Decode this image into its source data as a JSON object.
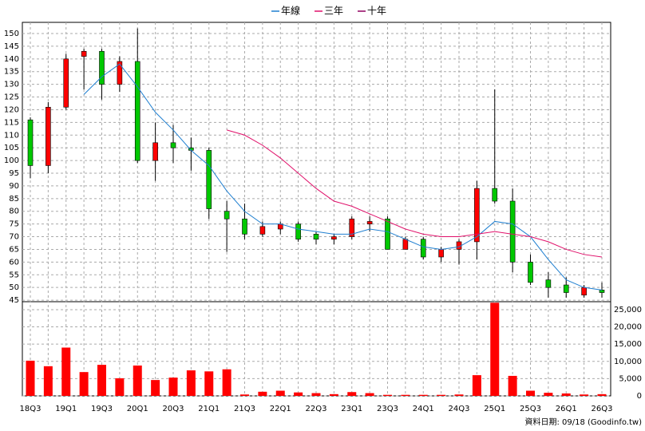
{
  "chart_data": {
    "type": "candlestick",
    "categories": [
      "18Q3",
      null,
      "19Q1",
      null,
      "19Q3",
      null,
      "20Q1",
      null,
      "20Q3",
      null,
      "21Q1",
      null,
      "21Q3",
      null,
      "22Q1",
      null,
      "22Q3",
      null,
      "23Q1",
      null,
      "23Q3",
      null,
      "24Q1",
      null,
      "24Q3",
      null,
      "25Q1",
      null,
      "25Q3",
      null,
      "26Q1",
      null,
      "26Q3"
    ],
    "open": [
      116,
      98,
      121,
      141,
      143,
      130,
      139,
      100,
      107,
      105,
      104,
      80,
      77,
      71,
      73,
      75,
      71,
      69,
      70,
      75,
      77,
      65,
      69,
      62,
      65,
      68,
      89,
      84,
      60,
      53,
      51,
      47,
      49
    ],
    "high": [
      117,
      123,
      142,
      144,
      144,
      141,
      152,
      115,
      114,
      109,
      105,
      84,
      83,
      76,
      76,
      76,
      72,
      71,
      78,
      78,
      78,
      70,
      70,
      66,
      69,
      92,
      128,
      89,
      63,
      56,
      54,
      51,
      52
    ],
    "low": [
      93,
      95,
      120,
      128,
      124,
      127,
      99,
      92,
      99,
      96,
      77,
      64,
      69,
      70,
      71,
      68,
      67,
      67,
      69,
      72,
      65,
      65,
      61,
      60,
      59,
      61,
      83,
      56,
      51,
      46,
      46,
      46,
      46
    ],
    "close": [
      98,
      121,
      140,
      143,
      130,
      139,
      100,
      107,
      105,
      104,
      81,
      77,
      71,
      74,
      75,
      69,
      69,
      70,
      77,
      76,
      65,
      69,
      62,
      65,
      68,
      89,
      84,
      60,
      52,
      50,
      48,
      50,
      48
    ],
    "up_color": "#ff0000",
    "down_color": "#00c800",
    "volume": [
      10200,
      8600,
      14000,
      6900,
      9000,
      5100,
      8800,
      4600,
      5300,
      7400,
      7100,
      7700,
      400,
      1200,
      1500,
      1000,
      800,
      500,
      1100,
      800,
      300,
      300,
      300,
      300,
      400,
      6000,
      27000,
      5800,
      1500,
      900,
      700,
      400,
      500
    ],
    "volume_color": "#ff0000",
    "series": [
      {
        "name": "年線",
        "color": "#1f7fd0",
        "values": [
          null,
          null,
          null,
          126,
          133,
          138,
          129,
          119,
          112,
          104,
          98,
          88,
          80,
          75,
          75,
          73,
          72,
          71,
          71,
          73,
          72,
          69,
          66,
          65,
          66,
          70,
          76,
          75,
          70,
          61,
          53,
          50,
          49
        ]
      },
      {
        "name": "三年",
        "color": "#e0106a",
        "values": [
          null,
          null,
          null,
          null,
          null,
          null,
          null,
          null,
          null,
          null,
          null,
          112,
          110,
          106,
          101,
          95,
          89,
          84,
          82,
          79,
          76,
          73,
          71,
          70,
          70,
          71,
          72,
          71,
          70,
          68,
          65,
          63,
          62
        ]
      },
      {
        "name": "十年",
        "color": "#900060",
        "values": [
          null,
          null,
          null,
          null,
          null,
          null,
          null,
          null,
          null,
          null,
          null,
          null,
          null,
          null,
          null,
          null,
          null,
          null,
          null,
          null,
          null,
          null,
          null,
          null,
          null,
          null,
          null,
          null,
          null,
          null,
          null,
          null,
          null
        ]
      }
    ],
    "ylim": [
      44.4,
      154.4
    ],
    "yticks": [
      45,
      50,
      55,
      60,
      65,
      70,
      75,
      80,
      85,
      90,
      95,
      100,
      105,
      110,
      115,
      120,
      125,
      130,
      135,
      140,
      145,
      150
    ],
    "y2lim": [
      0,
      27300
    ],
    "y2ticks": [
      0,
      {
        "value": 5000,
        "label": "5,000"
      },
      {
        "value": 10000,
        "label": "10,000"
      },
      {
        "value": 15000,
        "label": "15,000"
      },
      {
        "value": 20000,
        "label": "20,000"
      },
      {
        "value": 25000,
        "label": "25,000"
      }
    ],
    "grid": true,
    "source": "資料日期: 09/18 (Goodinfo.tw)"
  }
}
